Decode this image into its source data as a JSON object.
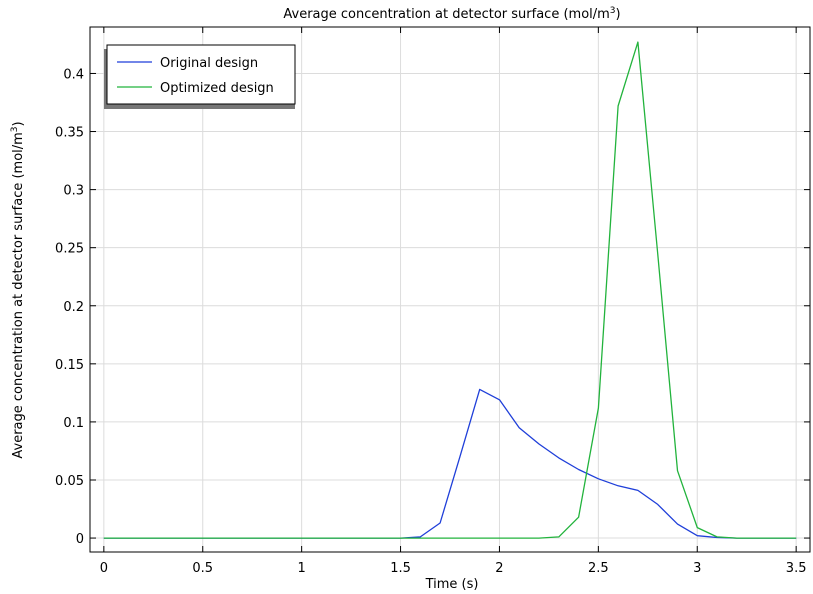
{
  "chart_data": {
    "type": "line",
    "title": "Average concentration at detector surface (mol/m",
    "title_sup": "3",
    "title_end": ")",
    "xlabel": "Time (s)",
    "ylabel": "Average concentration at detector surface (mol/m",
    "ylabel_sup": "3",
    "ylabel_end": ")",
    "xlim": [
      -0.07,
      3.57
    ],
    "ylim": [
      -0.012,
      0.44
    ],
    "xticks": [
      0,
      0.5,
      1,
      1.5,
      2,
      2.5,
      3,
      3.5
    ],
    "xtick_labels": [
      "0",
      "0.5",
      "1",
      "1.5",
      "2",
      "2.5",
      "3",
      "3.5"
    ],
    "yticks": [
      0,
      0.05,
      0.1,
      0.15,
      0.2,
      0.25,
      0.3,
      0.35,
      0.4
    ],
    "ytick_labels": [
      "0",
      "0.05",
      "0.1",
      "0.15",
      "0.2",
      "0.25",
      "0.3",
      "0.35",
      "0.4"
    ],
    "grid": true,
    "legend_position": "top-left",
    "series": [
      {
        "name": "Original design",
        "color": "#1f3fd9",
        "x": [
          0,
          0.1,
          0.2,
          0.3,
          0.4,
          0.5,
          0.6,
          0.7,
          0.8,
          0.9,
          1.0,
          1.1,
          1.2,
          1.3,
          1.4,
          1.5,
          1.6,
          1.7,
          1.8,
          1.9,
          2.0,
          2.1,
          2.2,
          2.3,
          2.4,
          2.5,
          2.6,
          2.7,
          2.8,
          2.9,
          3.0,
          3.1,
          3.2,
          3.3,
          3.4,
          3.5
        ],
        "y": [
          0,
          0,
          0,
          0,
          0,
          0,
          0,
          0,
          0,
          0,
          0,
          0,
          0,
          0,
          0,
          0,
          0.001,
          0.013,
          0.07,
          0.128,
          0.119,
          0.095,
          0.081,
          0.069,
          0.059,
          0.051,
          0.045,
          0.041,
          0.029,
          0.012,
          0.002,
          0.0005,
          0,
          0,
          0,
          0
        ]
      },
      {
        "name": "Optimized design",
        "color": "#22b33c",
        "x": [
          0,
          0.1,
          0.2,
          0.3,
          0.4,
          0.5,
          0.6,
          0.7,
          0.8,
          0.9,
          1.0,
          1.1,
          1.2,
          1.3,
          1.4,
          1.5,
          1.6,
          1.7,
          1.8,
          1.9,
          2.0,
          2.1,
          2.2,
          2.3,
          2.4,
          2.5,
          2.6,
          2.7,
          2.8,
          2.9,
          3.0,
          3.1,
          3.2,
          3.3,
          3.4,
          3.5
        ],
        "y": [
          0,
          0,
          0,
          0,
          0,
          0,
          0,
          0,
          0,
          0,
          0,
          0,
          0,
          0,
          0,
          0,
          0,
          0,
          0,
          0,
          0,
          0,
          0,
          0.001,
          0.018,
          0.112,
          0.372,
          0.427,
          0.245,
          0.058,
          0.009,
          0.001,
          0,
          0,
          0,
          0
        ]
      }
    ]
  }
}
